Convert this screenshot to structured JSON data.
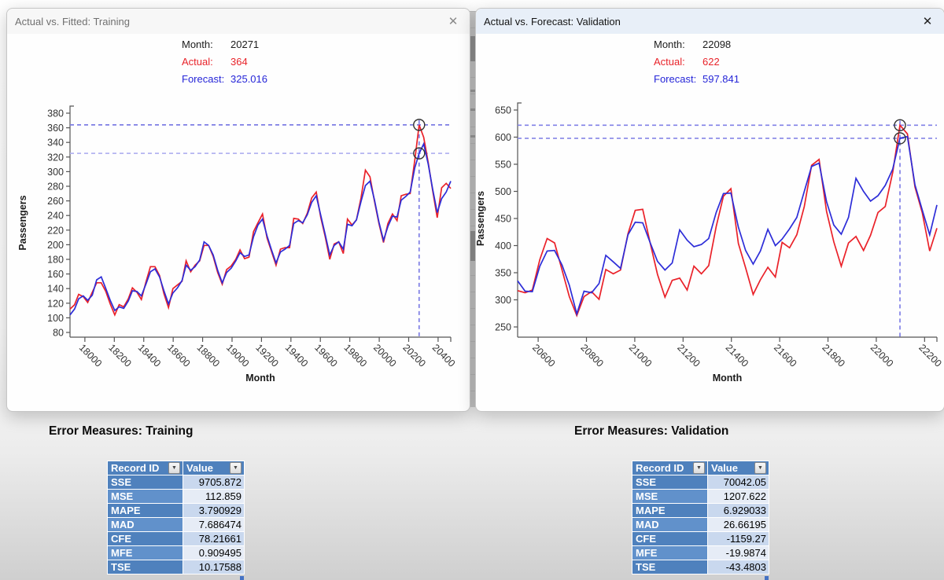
{
  "ui": {
    "close_icon": "✕",
    "dropdown_icon": "▼"
  },
  "windows": {
    "training": {
      "title": "Actual vs. Fitted: Training",
      "tooltip": {
        "month_label": "Month:",
        "month_value": "20271",
        "actual_label": "Actual:",
        "actual_value": "364",
        "forecast_label": "Forecast:",
        "forecast_value": "325.016"
      }
    },
    "validation": {
      "title": "Actual vs. Forecast: Validation",
      "tooltip": {
        "month_label": "Month:",
        "month_value": "22098",
        "actual_label": "Actual:",
        "actual_value": "622",
        "forecast_label": "Forecast:",
        "forecast_value": "597.841"
      }
    }
  },
  "chart_data": [
    {
      "type": "line",
      "title": "Actual vs. Fitted: Training",
      "xlabel": "Month",
      "ylabel": "Passengers",
      "ylim": [
        80,
        380
      ],
      "yticks": [
        80,
        100,
        120,
        140,
        160,
        180,
        200,
        220,
        240,
        260,
        280,
        300,
        320,
        340,
        360,
        380
      ],
      "xticks": [
        18000,
        18200,
        18400,
        18600,
        18800,
        19000,
        19200,
        19400,
        19600,
        19800,
        20000,
        20200,
        20400
      ],
      "x_range": [
        17899,
        20486
      ],
      "legend": "none",
      "grid": false,
      "x": [
        17899,
        17930,
        17958,
        17989,
        18019,
        18050,
        18080,
        18111,
        18142,
        18172,
        18203,
        18233,
        18264,
        18295,
        18323,
        18354,
        18384,
        18415,
        18445,
        18476,
        18507,
        18537,
        18568,
        18598,
        18629,
        18660,
        18688,
        18719,
        18749,
        18780,
        18810,
        18841,
        18872,
        18902,
        18933,
        18963,
        18994,
        19025,
        19054,
        19085,
        19115,
        19146,
        19176,
        19207,
        19238,
        19268,
        19299,
        19329,
        19360,
        19391,
        19419,
        19450,
        19480,
        19511,
        19541,
        19572,
        19603,
        19633,
        19664,
        19694,
        19725,
        19756,
        19784,
        19815,
        19845,
        19876,
        19906,
        19937,
        19968,
        19998,
        20029,
        20059,
        20090,
        20121,
        20149,
        20180,
        20210,
        20241,
        20271,
        20302,
        20333,
        20363,
        20394,
        20424,
        20455,
        20486
      ],
      "series": [
        {
          "name": "Actual",
          "color": "#ea2129",
          "values": [
            112,
            118,
            132,
            129,
            121,
            135,
            148,
            148,
            136,
            119,
            104,
            118,
            115,
            126,
            141,
            135,
            125,
            149,
            170,
            170,
            158,
            133,
            114,
            140,
            145,
            150,
            178,
            163,
            172,
            178,
            199,
            199,
            184,
            162,
            146,
            166,
            171,
            180,
            193,
            181,
            183,
            218,
            230,
            242,
            209,
            191,
            172,
            194,
            196,
            196,
            236,
            235,
            229,
            243,
            264,
            272,
            237,
            211,
            180,
            201,
            204,
            188,
            235,
            227,
            234,
            264,
            302,
            293,
            259,
            229,
            203,
            229,
            242,
            233,
            267,
            269,
            270,
            315,
            364,
            347,
            312,
            274,
            237,
            278,
            284,
            277
          ]
        },
        {
          "name": "Fitted",
          "color": "#2d2dd8",
          "values": [
            104,
            112,
            126,
            130,
            124,
            131,
            152,
            156,
            140,
            124,
            110,
            115,
            113,
            123,
            137,
            136,
            130,
            146,
            163,
            167,
            156,
            137,
            119,
            134,
            141,
            151,
            172,
            165,
            170,
            179,
            204,
            199,
            186,
            165,
            148,
            162,
            168,
            178,
            189,
            184,
            186,
            211,
            227,
            235,
            212,
            193,
            175,
            190,
            194,
            199,
            229,
            233,
            230,
            241,
            258,
            267,
            240,
            214,
            186,
            199,
            204,
            194,
            228,
            226,
            234,
            259,
            281,
            287,
            261,
            231,
            206,
            225,
            239,
            238,
            261,
            266,
            272,
            305,
            325,
            338,
            310,
            276,
            244,
            263,
            272,
            287
          ]
        }
      ],
      "highlight": {
        "x": 20271,
        "actual": 364,
        "forecast": 325.016
      },
      "dash_colors": [
        "#7d7de4",
        "#b4b4f0"
      ]
    },
    {
      "type": "line",
      "title": "Actual vs. Forecast: Validation",
      "xlabel": "Month",
      "ylabel": "Passengers",
      "ylim": [
        250,
        650
      ],
      "yticks": [
        250,
        300,
        350,
        400,
        450,
        500,
        550,
        600,
        650
      ],
      "xticks": [
        20600,
        20800,
        21000,
        21200,
        21400,
        21600,
        21800,
        22000,
        22200
      ],
      "x_range": [
        20515,
        22251
      ],
      "legend": "none",
      "grid": false,
      "x": [
        20515,
        20546,
        20576,
        20607,
        20637,
        20668,
        20699,
        20729,
        20760,
        20790,
        20821,
        20852,
        20880,
        20911,
        20941,
        20972,
        21002,
        21033,
        21064,
        21094,
        21125,
        21155,
        21186,
        21217,
        21245,
        21276,
        21306,
        21337,
        21367,
        21398,
        21429,
        21459,
        21490,
        21520,
        21551,
        21582,
        21610,
        21641,
        21671,
        21702,
        21732,
        21763,
        21794,
        21824,
        21855,
        21885,
        21916,
        21947,
        21976,
        22007,
        22037,
        22068,
        22098,
        22129,
        22160,
        22190,
        22221,
        22251
      ],
      "series": [
        {
          "name": "Actual",
          "color": "#ea2129",
          "values": [
            317,
            313,
            318,
            374,
            413,
            405,
            355,
            306,
            271,
            306,
            315,
            301,
            356,
            348,
            355,
            422,
            465,
            467,
            404,
            347,
            305,
            336,
            340,
            318,
            362,
            348,
            363,
            435,
            491,
            505,
            404,
            359,
            310,
            337,
            360,
            342,
            406,
            396,
            420,
            472,
            548,
            559,
            463,
            407,
            362,
            405,
            417,
            391,
            419,
            461,
            472,
            535,
            622,
            606,
            508,
            461,
            390,
            432
          ]
        },
        {
          "name": "Forecast",
          "color": "#2d2dd8",
          "values": [
            335,
            316,
            315,
            362,
            390,
            391,
            364,
            327,
            274,
            316,
            313,
            330,
            382,
            370,
            358,
            420,
            443,
            442,
            405,
            371,
            355,
            368,
            429,
            410,
            398,
            402,
            413,
            461,
            496,
            497,
            434,
            391,
            366,
            390,
            430,
            400,
            412,
            431,
            452,
            500,
            546,
            552,
            481,
            438,
            421,
            452,
            524,
            500,
            482,
            492,
            511,
            541,
            598,
            601,
            512,
            466,
            420,
            475
          ]
        }
      ],
      "highlight": {
        "x": 22098,
        "actual": 622,
        "forecast": 597.841
      },
      "dash_colors": [
        "#8080e6",
        "#8f8fe8"
      ]
    }
  ],
  "tables": {
    "training": {
      "heading": "Error Measures: Training",
      "columns": [
        "Record ID",
        "Value"
      ],
      "rows": [
        [
          "SSE",
          "9705.872"
        ],
        [
          "MSE",
          "112.859"
        ],
        [
          "MAPE",
          "3.790929"
        ],
        [
          "MAD",
          "7.686474"
        ],
        [
          "CFE",
          "78.21661"
        ],
        [
          "MFE",
          "0.909495"
        ],
        [
          "TSE",
          "10.17588"
        ]
      ]
    },
    "validation": {
      "heading": "Error Measures: Validation",
      "columns": [
        "Record ID",
        "Value"
      ],
      "rows": [
        [
          "SSE",
          "70042.05"
        ],
        [
          "MSE",
          "1207.622"
        ],
        [
          "MAPE",
          "6.929033"
        ],
        [
          "MAD",
          "26.66195"
        ],
        [
          "CFE",
          "-1159.27"
        ],
        [
          "MFE",
          "-19.9874"
        ],
        [
          "TSE",
          "-43.4803"
        ]
      ]
    }
  }
}
